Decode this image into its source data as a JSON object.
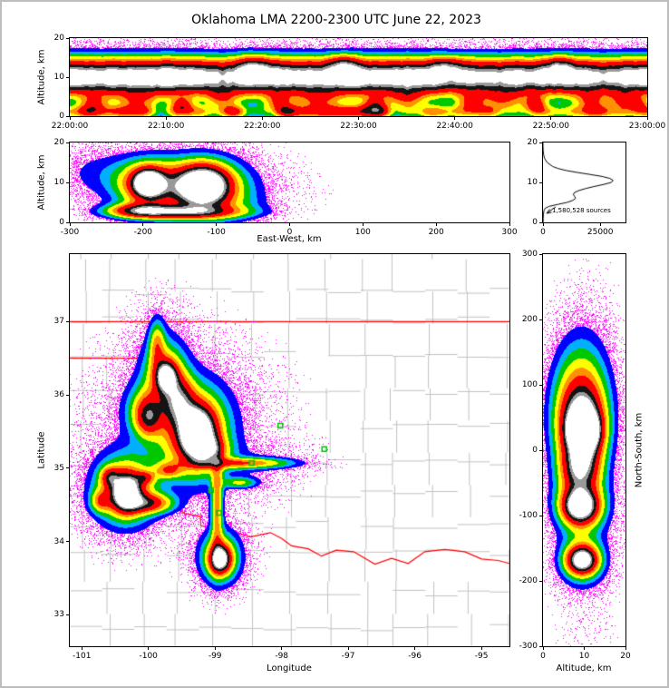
{
  "title": "Oklahoma LMA 2200-2300 UTC June 22, 2023",
  "colors": {
    "background": "#ffffff",
    "outer_border": "#bdbdbd",
    "frame": "#000000",
    "county_lines": "#c2c2c2",
    "state_border": "#ff0000",
    "station_marker": "#00c000",
    "histogram_line": "#000000",
    "scatter_low_density": "#ff00ff"
  },
  "colormap": {
    "scatter_color": "#ff00ff",
    "scatter_max": 0.1,
    "levels": [
      [
        0.16,
        "#0000ff"
      ],
      [
        0.22,
        "#00b0ff"
      ],
      [
        0.3,
        "#00c800"
      ],
      [
        0.4,
        "#ffff00"
      ],
      [
        0.5,
        "#ff9000"
      ],
      [
        0.68,
        "#ff0000"
      ],
      [
        0.82,
        "#141414"
      ],
      [
        0.92,
        "#999999"
      ],
      [
        99,
        "#ffffff"
      ]
    ]
  },
  "chart_data": [
    {
      "id": "time_height",
      "type": "heatmap",
      "xlabel": "",
      "ylabel": "Altitude, km",
      "xlim": [
        0,
        3600
      ],
      "ylim": [
        0,
        20
      ],
      "x_tick_values": [
        0,
        600,
        1200,
        1800,
        2400,
        3000,
        3600
      ],
      "x_tick_labels": [
        "22:00:00",
        "22:10:00",
        "22:20:00",
        "22:30:00",
        "22:40:00",
        "22:50:00",
        "23:00:00"
      ],
      "y_tick_values": [
        0,
        10,
        20
      ],
      "y_tick_labels": [
        "0",
        "10",
        "20"
      ],
      "model": {
        "core_alt": 10,
        "core_sigma": 3.2,
        "base_alt": 1.05,
        "base_sigma": 1.3,
        "base_amp": 0.55,
        "floor_amp": 0.08,
        "floor_sigma": 5.2,
        "bursts": [
          [
            150,
            3.5,
            60,
            1.5,
            0.35
          ],
          [
            420,
            4,
            90,
            1.8,
            0.3
          ],
          [
            700,
            3,
            50,
            1.4,
            0.4
          ],
          [
            950,
            4.5,
            70,
            2.0,
            0.3
          ],
          [
            1150,
            13,
            80,
            1.8,
            0.25
          ],
          [
            1300,
            3.5,
            60,
            1.6,
            0.35
          ],
          [
            1550,
            4,
            100,
            2.0,
            0.3
          ],
          [
            1700,
            13.5,
            60,
            1.5,
            0.28
          ],
          [
            1900,
            3.2,
            55,
            1.5,
            0.38
          ],
          [
            2100,
            4.2,
            80,
            1.8,
            0.3
          ],
          [
            2350,
            13,
            70,
            1.6,
            0.25
          ],
          [
            2500,
            3.5,
            60,
            1.5,
            0.35
          ],
          [
            2700,
            4,
            90,
            1.9,
            0.32
          ],
          [
            2900,
            3.2,
            50,
            1.4,
            0.4
          ],
          [
            3050,
            13.2,
            60,
            1.5,
            0.26
          ],
          [
            3250,
            3.8,
            70,
            1.7,
            0.33
          ],
          [
            3450,
            4,
            60,
            1.6,
            0.35
          ],
          [
            3550,
            3,
            40,
            1.3,
            0.3
          ]
        ]
      }
    },
    {
      "id": "east_west_altitude",
      "type": "heatmap",
      "xlabel": "East-West, km",
      "ylabel": "Altitude, km",
      "xlim": [
        -300,
        300
      ],
      "ylim": [
        0,
        20
      ],
      "x_tick_values": [
        -300,
        -200,
        -100,
        0,
        100,
        200,
        300
      ],
      "x_tick_labels": [
        "-300",
        "-200",
        "-100",
        "0",
        "100",
        "200",
        "300"
      ],
      "y_tick_values": [
        0,
        10,
        20
      ],
      "y_tick_labels": [
        "0",
        "10",
        "20"
      ],
      "blobs": [
        [
          -193,
          9.8,
          13,
          2.1,
          0.95
        ],
        [
          -193,
          9.5,
          26,
          3.8,
          0.5
        ],
        [
          -118,
          9.2,
          22,
          3.1,
          1.0
        ],
        [
          -120,
          8.8,
          40,
          4.8,
          0.52
        ],
        [
          -150,
          2.6,
          55,
          1.1,
          0.58
        ],
        [
          -205,
          3.0,
          28,
          1.3,
          0.45
        ],
        [
          -265,
          13,
          38,
          4.0,
          0.075
        ],
        [
          -210,
          10.5,
          45,
          4.5,
          0.08
        ],
        [
          -135,
          7.0,
          55,
          5.0,
          0.08
        ],
        [
          -70,
          4.0,
          32,
          2.5,
          0.07
        ],
        [
          -150,
          9.0,
          100,
          6.5,
          0.05
        ]
      ]
    },
    {
      "id": "altitude_histogram",
      "type": "line",
      "xlabel": "",
      "ylabel": "",
      "xlim": [
        0,
        36000
      ],
      "ylim": [
        0,
        20
      ],
      "x_tick_values": [
        0,
        25000
      ],
      "x_tick_labels": [
        "0",
        "25000"
      ],
      "y_tick_values": [
        0,
        10,
        20
      ],
      "y_tick_labels": [
        "0",
        "10",
        "20"
      ],
      "annotation": "1,580,528 sources",
      "alt": [
        0,
        1,
        2,
        3,
        3.5,
        4,
        4.5,
        5,
        5.5,
        6,
        6.5,
        7,
        7.5,
        8,
        8.5,
        9,
        9.5,
        10,
        10.5,
        11,
        11.5,
        12,
        12.5,
        13,
        13.5,
        14,
        15,
        16,
        17,
        18,
        19,
        20
      ],
      "counts": [
        60,
        100,
        180,
        450,
        900,
        2600,
        6500,
        10500,
        13000,
        14200,
        13800,
        13200,
        13800,
        15800,
        18800,
        22500,
        26500,
        29800,
        30600,
        29200,
        25800,
        20500,
        15000,
        10000,
        6500,
        4200,
        1800,
        700,
        250,
        90,
        30,
        10
      ]
    },
    {
      "id": "plan_view",
      "type": "heatmap",
      "xlabel": "Longitude",
      "ylabel": "Latitude",
      "xlim": [
        -101.18,
        -94.58
      ],
      "ylim": [
        32.57,
        37.92
      ],
      "x_tick_values": [
        -101,
        -100,
        -99,
        -98,
        -97,
        -96,
        -95
      ],
      "x_tick_labels": [
        "-101",
        "-100",
        "-99",
        "-98",
        "-97",
        "-96",
        "-95"
      ],
      "y_tick_values": [
        33,
        34,
        35,
        36,
        37
      ],
      "y_tick_labels": [
        "33",
        "34",
        "35",
        "36",
        "37"
      ],
      "blobs": [
        [
          -99.27,
          35.48,
          0.17,
          0.22,
          1.0
        ],
        [
          -99.32,
          35.52,
          0.34,
          0.4,
          0.55
        ],
        [
          -99.1,
          35.25,
          0.18,
          0.12,
          0.4
        ],
        [
          -99.55,
          35.92,
          0.15,
          0.22,
          0.5
        ],
        [
          -99.73,
          36.25,
          0.1,
          0.13,
          0.72
        ],
        [
          -99.75,
          36.28,
          0.2,
          0.28,
          0.38
        ],
        [
          -99.87,
          36.7,
          0.08,
          0.22,
          0.3
        ],
        [
          -100.0,
          35.7,
          0.13,
          0.17,
          0.45
        ],
        [
          -100.05,
          35.8,
          0.22,
          0.25,
          0.25
        ],
        [
          -100.33,
          34.67,
          0.14,
          0.16,
          0.88
        ],
        [
          -100.36,
          34.7,
          0.3,
          0.3,
          0.45
        ],
        [
          -100.0,
          34.52,
          0.25,
          0.09,
          0.5
        ],
        [
          -100.58,
          34.88,
          0.09,
          0.09,
          0.38
        ],
        [
          -100.72,
          34.55,
          0.1,
          0.1,
          0.3
        ],
        [
          -98.92,
          33.76,
          0.1,
          0.12,
          0.8
        ],
        [
          -98.92,
          33.78,
          0.2,
          0.24,
          0.38
        ],
        [
          -98.55,
          35.07,
          0.5,
          0.05,
          0.4
        ],
        [
          -98.97,
          34.5,
          0.06,
          0.45,
          0.4
        ],
        [
          -99.7,
          34.97,
          0.14,
          0.07,
          0.32
        ],
        [
          -100.05,
          34.87,
          0.1,
          0.06,
          0.3
        ],
        [
          -98.62,
          34.8,
          0.18,
          0.05,
          0.26
        ],
        [
          -99.45,
          35.55,
          0.85,
          0.75,
          0.08
        ],
        [
          -100.35,
          34.7,
          0.45,
          0.45,
          0.075
        ],
        [
          -98.92,
          33.78,
          0.3,
          0.3,
          0.07
        ],
        [
          -99.8,
          36.55,
          0.3,
          0.45,
          0.07
        ],
        [
          -98.6,
          35.05,
          0.6,
          0.2,
          0.06
        ]
      ],
      "stations": [
        [
          -98.02,
          35.58
        ],
        [
          -97.36,
          35.26
        ],
        [
          -99.06,
          34.7
        ],
        [
          -98.94,
          34.39
        ],
        [
          -98.45,
          35.07
        ]
      ],
      "state_borders": {
        "kansas": [
          [
            -101.18,
            37
          ],
          [
            -94.58,
            37
          ]
        ],
        "panhandle": [
          [
            -101.18,
            36.5
          ],
          [
            -100,
            36.5
          ]
        ],
        "texas_100w": [
          [
            -100,
            36.5
          ],
          [
            -100,
            34.56
          ]
        ],
        "red_river": [
          [
            -100,
            34.56
          ],
          [
            -99.88,
            34.44
          ],
          [
            -99.7,
            34.4
          ],
          [
            -99.58,
            34.46
          ],
          [
            -99.45,
            34.38
          ],
          [
            -99.22,
            34.34
          ],
          [
            -99.21,
            34.21
          ],
          [
            -98.95,
            34.18
          ],
          [
            -98.7,
            34.13
          ],
          [
            -98.47,
            34.06
          ],
          [
            -98.17,
            34.12
          ],
          [
            -98.0,
            34.04
          ],
          [
            -97.85,
            33.94
          ],
          [
            -97.6,
            33.9
          ],
          [
            -97.4,
            33.8
          ],
          [
            -97.18,
            33.88
          ],
          [
            -96.92,
            33.86
          ],
          [
            -96.6,
            33.69
          ],
          [
            -96.35,
            33.77
          ],
          [
            -96.1,
            33.7
          ],
          [
            -95.85,
            33.86
          ],
          [
            -95.55,
            33.89
          ],
          [
            -95.25,
            33.86
          ],
          [
            -95.0,
            33.76
          ],
          [
            -94.75,
            33.74
          ],
          [
            -94.58,
            33.7
          ]
        ]
      },
      "county_grid": {
        "lon_start": -101.18,
        "lon_end": -94.58,
        "lat_start": 32.57,
        "lat_end": 37.92,
        "cell_lon": 0.485,
        "cell_lat": 0.44,
        "jitter": 0.1,
        "skip": 0.13
      }
    },
    {
      "id": "north_south_altitude",
      "type": "heatmap",
      "xlabel": "Altitude, km",
      "ylabel": "North-South, km",
      "xlim": [
        0,
        20
      ],
      "ylim": [
        -300,
        300
      ],
      "x_tick_values": [
        0,
        10,
        20
      ],
      "x_tick_labels": [
        "0",
        "10",
        "20"
      ],
      "y_tick_values": [
        -300,
        -200,
        -100,
        0,
        100,
        200,
        300
      ],
      "y_tick_labels": [
        "-300",
        "-200",
        "-100",
        "0",
        "100",
        "200",
        "300"
      ],
      "blobs": [
        [
          9.5,
          32,
          3.0,
          36,
          0.95
        ],
        [
          10.0,
          30,
          2.2,
          16,
          0.9
        ],
        [
          9.0,
          55,
          4.5,
          65,
          0.5
        ],
        [
          8.8,
          -30,
          3.0,
          22,
          0.5
        ],
        [
          9.0,
          -85,
          2.6,
          16,
          0.85
        ],
        [
          9.2,
          -85,
          4.0,
          28,
          0.45
        ],
        [
          9.5,
          -168,
          2.3,
          13,
          0.8
        ],
        [
          9.5,
          -168,
          3.6,
          24,
          0.4
        ],
        [
          10,
          -20,
          5.5,
          145,
          0.075
        ],
        [
          10,
          90,
          4.5,
          60,
          0.06
        ]
      ]
    }
  ]
}
